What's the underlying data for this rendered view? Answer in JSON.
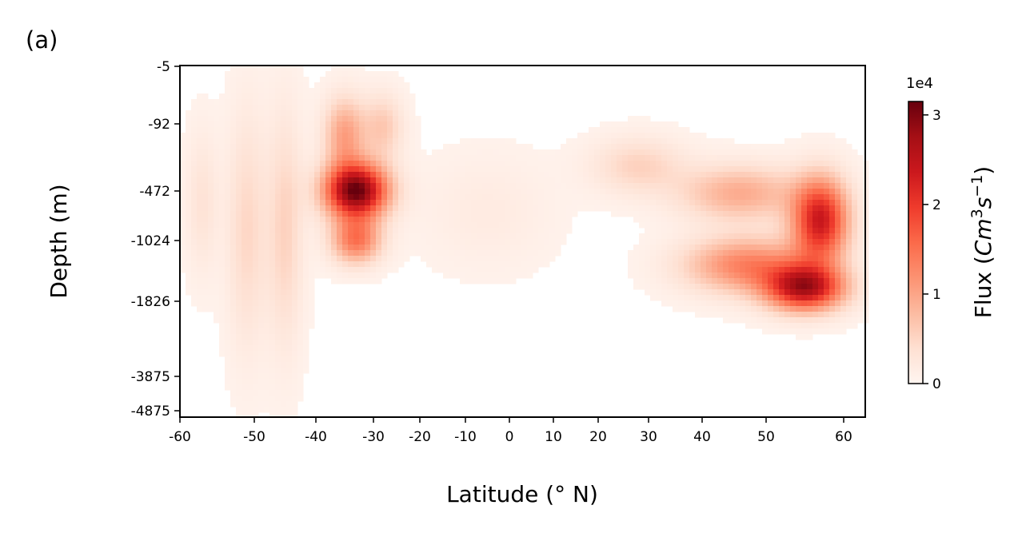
{
  "panel_label": "(a)",
  "chart_data": {
    "type": "heatmap",
    "xlabel": "Latitude (° N)",
    "ylabel": "Depth (m)",
    "colorbar_label": "Flux ($Cm^3s^{-1}$)",
    "colorbar_label_parts": {
      "prefix": "Flux (",
      "C": "C",
      "m": "m",
      "exp3": "3",
      "s": "s",
      "expm1": "−1",
      "suffix": ")"
    },
    "colorbar_exponent": "1e4",
    "colormap": "Reds",
    "color_range": [
      0,
      3.15
    ],
    "color_unit_multiplier": 10000,
    "xlim": [
      -60,
      63
    ],
    "x_ticks": [
      -60,
      -50,
      -40,
      -30,
      -20,
      -10,
      0,
      10,
      20,
      30,
      40,
      50,
      60
    ],
    "x_tick_labels": [
      "-60",
      "-50",
      "-40",
      "-30",
      "-20",
      "-10",
      "0",
      "10",
      "20",
      "30",
      "40",
      "50",
      "60"
    ],
    "y_ticks": [
      -5,
      -92,
      -472,
      -1024,
      -1826,
      -3875,
      -4875
    ],
    "y_tick_labels": [
      "-5",
      "-92",
      "-472",
      "-1024",
      "-1826",
      "-3875",
      "-4875"
    ],
    "colorbar_ticks": [
      0,
      1,
      2,
      3
    ],
    "colorbar_tick_labels": [
      "0",
      "1",
      "2",
      "3"
    ],
    "features": [
      {
        "lat": -33,
        "depth": -472,
        "lat_width": 4,
        "depth_width": 0.6,
        "value": 3.1
      },
      {
        "lat": -33,
        "depth": -1024,
        "lat_width": 3,
        "depth_width": 0.5,
        "value": 1.4
      },
      {
        "lat": -35,
        "depth": -150,
        "lat_width": 2.5,
        "depth_width": 0.8,
        "value": 1.0
      },
      {
        "lat": -28,
        "depth": -110,
        "lat_width": 3,
        "depth_width": 0.7,
        "value": 0.6
      },
      {
        "lat": 57,
        "depth": -800,
        "lat_width": 2.5,
        "depth_width": 0.9,
        "value": 2.3
      },
      {
        "lat": 55,
        "depth": -1650,
        "lat_width": 3.5,
        "depth_width": 0.5,
        "value": 2.5
      },
      {
        "lat": 47,
        "depth": -1350,
        "lat_width": 6,
        "depth_width": 0.6,
        "value": 1.3
      },
      {
        "lat": 46,
        "depth": -500,
        "lat_width": 6,
        "depth_width": 0.6,
        "value": 0.9
      },
      {
        "lat": 28,
        "depth": -330,
        "lat_width": 6,
        "depth_width": 0.6,
        "value": 0.5
      },
      {
        "lat": -45,
        "depth": -900,
        "lat_width": 2,
        "depth_width": 2.5,
        "value": 0.5
      },
      {
        "lat": -51,
        "depth": -900,
        "lat_width": 2,
        "depth_width": 2.5,
        "value": 0.45
      },
      {
        "lat": -57,
        "depth": -600,
        "lat_width": 1.5,
        "depth_width": 1.5,
        "value": 0.3
      },
      {
        "lat": -5,
        "depth": -700,
        "lat_width": 10,
        "depth_width": 1.2,
        "value": 0.15
      }
    ]
  }
}
